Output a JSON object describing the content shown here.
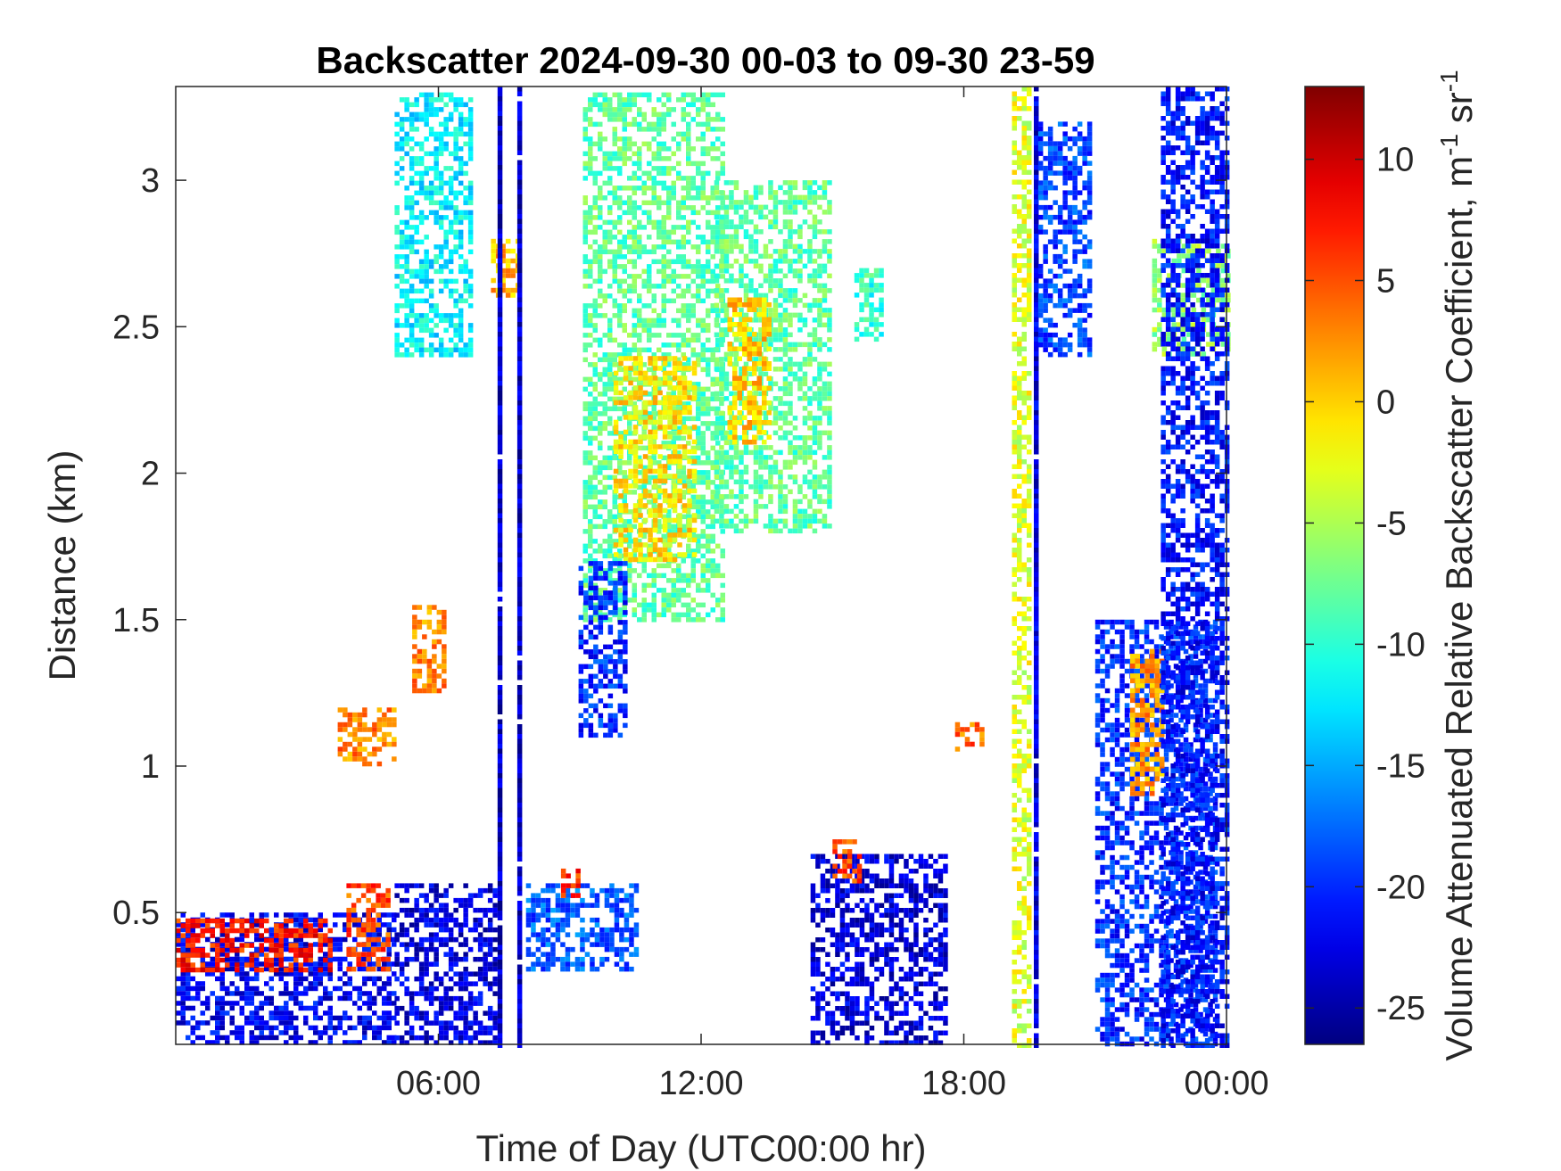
{
  "chart_data": {
    "type": "heatmap",
    "title": "Backscatter 2024-09-30 00-03 to 09-30 23-59",
    "xlabel": "Time of Day (UTC00:00 hr)",
    "ylabel": "Distance (km)",
    "colorbar_label_main": "Volume Attenuated Relative Backscatter Coefficient, m",
    "colorbar_label_exp1": "-1",
    "colorbar_label_mid": " sr",
    "colorbar_label_exp2": "-1",
    "x_range_hours": [
      0,
      24
    ],
    "y_range_km": [
      0.05,
      3.32
    ],
    "color_range": [
      -26.5,
      13
    ],
    "colormap": "jet",
    "x_ticks": [
      {
        "value": 6,
        "label": "06:00"
      },
      {
        "value": 12,
        "label": "12:00"
      },
      {
        "value": 18,
        "label": "18:00"
      },
      {
        "value": 24,
        "label": "00:00"
      }
    ],
    "y_ticks": [
      {
        "value": 0.5,
        "label": "0.5"
      },
      {
        "value": 1,
        "label": "1"
      },
      {
        "value": 1.5,
        "label": "1.5"
      },
      {
        "value": 2,
        "label": "2"
      },
      {
        "value": 2.5,
        "label": "2.5"
      },
      {
        "value": 3,
        "label": "3"
      }
    ],
    "colorbar_ticks": [
      {
        "value": -25,
        "label": "-25"
      },
      {
        "value": -20,
        "label": "-20"
      },
      {
        "value": -15,
        "label": "-15"
      },
      {
        "value": -10,
        "label": "-10"
      },
      {
        "value": -5,
        "label": "-5"
      },
      {
        "value": 0,
        "label": "0"
      },
      {
        "value": 5,
        "label": "5"
      },
      {
        "value": 10,
        "label": "10"
      }
    ],
    "features": [
      {
        "name": "boundary-layer",
        "x": [
          0.0,
          5.0
        ],
        "y": [
          0.05,
          0.5
        ],
        "value": -22
      },
      {
        "name": "boundary-layer-top",
        "x": [
          0.0,
          3.5
        ],
        "y": [
          0.3,
          0.48
        ],
        "value": 7
      },
      {
        "name": "boundary-layer-top-2",
        "x": [
          3.9,
          4.8
        ],
        "y": [
          0.3,
          0.6
        ],
        "value": 5
      },
      {
        "name": "morning-low-cloud",
        "x": [
          5.0,
          7.3
        ],
        "y": [
          0.05,
          0.6
        ],
        "value": -23
      },
      {
        "name": "aerosol-1.1km",
        "x": [
          3.7,
          5.0
        ],
        "y": [
          1.0,
          1.2
        ],
        "value": 3
      },
      {
        "name": "aerosol-1.4km",
        "x": [
          5.4,
          6.1
        ],
        "y": [
          1.25,
          1.55
        ],
        "value": 3
      },
      {
        "name": "upper-cloud-early",
        "x": [
          5.0,
          6.7
        ],
        "y": [
          2.4,
          3.3
        ],
        "value": -12
      },
      {
        "name": "upper-cloud-patch",
        "x": [
          7.2,
          7.8
        ],
        "y": [
          2.6,
          2.8
        ],
        "value": 1
      },
      {
        "name": "vertical-streak-1",
        "x": [
          7.35,
          7.45
        ],
        "y": [
          0.05,
          3.32
        ],
        "value": -24
      },
      {
        "name": "vertical-streak-2",
        "x": [
          7.8,
          7.9
        ],
        "y": [
          0.05,
          3.32
        ],
        "value": -24
      },
      {
        "name": "midday-lower-cloud",
        "x": [
          8.0,
          10.5
        ],
        "y": [
          0.3,
          0.6
        ],
        "value": -18
      },
      {
        "name": "midday-lower-peak",
        "x": [
          8.8,
          9.2
        ],
        "y": [
          0.55,
          0.65
        ],
        "value": 6
      },
      {
        "name": "main-cloud-left",
        "x": [
          9.3,
          12.5
        ],
        "y": [
          1.5,
          3.3
        ],
        "value": -8
      },
      {
        "name": "main-cloud-core-1",
        "x": [
          10.0,
          11.8
        ],
        "y": [
          1.7,
          2.4
        ],
        "value": -1
      },
      {
        "name": "main-cloud-right",
        "x": [
          12.3,
          14.9
        ],
        "y": [
          1.8,
          3.0
        ],
        "value": -8
      },
      {
        "name": "main-cloud-core-2",
        "x": [
          12.6,
          13.6
        ],
        "y": [
          2.1,
          2.6
        ],
        "value": 0
      },
      {
        "name": "cloud-fallstreaks",
        "x": [
          9.2,
          10.3
        ],
        "y": [
          1.1,
          1.7
        ],
        "value": -20
      },
      {
        "name": "afternoon-surface-layer",
        "x": [
          14.5,
          17.6
        ],
        "y": [
          0.05,
          0.7
        ],
        "value": -23
      },
      {
        "name": "afternoon-peak",
        "x": [
          15.0,
          15.6
        ],
        "y": [
          0.6,
          0.75
        ],
        "value": 5
      },
      {
        "name": "upper-patch-15h",
        "x": [
          15.5,
          16.1
        ],
        "y": [
          2.45,
          2.7
        ],
        "value": -10
      },
      {
        "name": "aerosol-18h",
        "x": [
          17.8,
          18.4
        ],
        "y": [
          1.05,
          1.15
        ],
        "value": 4
      },
      {
        "name": "persistent-column",
        "x": [
          19.1,
          19.5
        ],
        "y": [
          0.05,
          3.32
        ],
        "value": -3
      },
      {
        "name": "column-edge",
        "x": [
          19.6,
          19.7
        ],
        "y": [
          0.05,
          3.32
        ],
        "value": -23
      },
      {
        "name": "evening-cloud",
        "x": [
          19.7,
          20.9
        ],
        "y": [
          2.4,
          3.2
        ],
        "value": -19
      },
      {
        "name": "evening-streaks",
        "x": [
          21.0,
          23.8
        ],
        "y": [
          0.05,
          1.5
        ],
        "value": -20
      },
      {
        "name": "evening-aerosol",
        "x": [
          21.8,
          22.5
        ],
        "y": [
          0.9,
          1.4
        ],
        "value": 2
      },
      {
        "name": "late-cloud",
        "x": [
          22.3,
          24.0
        ],
        "y": [
          2.4,
          2.8
        ],
        "value": -6
      },
      {
        "name": "late-column",
        "x": [
          22.5,
          24.0
        ],
        "y": [
          0.05,
          3.32
        ],
        "value": -21
      }
    ]
  }
}
